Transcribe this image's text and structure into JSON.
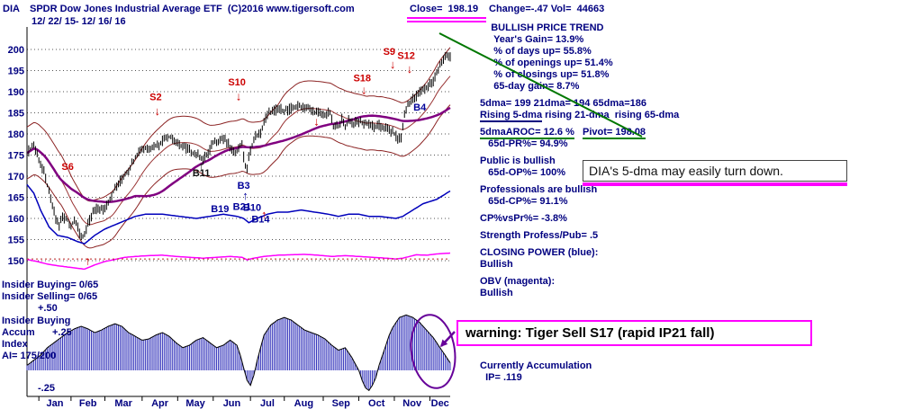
{
  "header": {
    "symbol": "DIA",
    "title": "SPDR Dow Jones Industrial Average ETF  (C)2016 www.tigersoft.com",
    "close": "Close=  198.19",
    "change_vol": "Change=-.47 Vol=  44663",
    "date_range": "12/ 22/ 15- 12/ 16/ 16"
  },
  "left_panel": {
    "insider_buying": "Insider Buying= 0/65",
    "insider_selling": "Insider Selling= 0/65",
    "scale_top": "+.50",
    "panel_title": "Insider Buying",
    "accum_label": "Accum",
    "scale_mid": "+.25",
    "index_label": "Index",
    "ai_value": "AI= 175/200",
    "scale_bottom": "-.25"
  },
  "annotations": {
    "note": "DIA's 5-dma may easily turn down.",
    "warning": "warning: Tiger Sell S17 (rapid IP21 fall)"
  },
  "right_panel": {
    "blocks": [
      {
        "lines": [
          [
            {
              "t": "    BULLISH PRICE TREND"
            }
          ],
          [
            {
              "t": "     Year's Gain= 13.9%"
            }
          ],
          [
            {
              "t": "     % of days up= 55.8%"
            }
          ],
          [
            {
              "t": "     % of openings up= 51.4%"
            }
          ],
          [
            {
              "t": "     % of closings up= 51.8%"
            }
          ],
          [
            {
              "t": "     65-day gain= 8.7%"
            }
          ]
        ]
      },
      {
        "lines": [
          [
            {
              "t": "5dma= 199 21dma= 194 65dma=186"
            }
          ],
          [
            {
              "t": "Rising 5-dma",
              "u": "navy"
            },
            {
              "t": " rising 21-dma  rising 65-dma"
            }
          ]
        ]
      },
      {
        "lines": [
          [
            {
              "t": "5dmaAROC= 12.6 %",
              "u": "green"
            },
            {
              "t": "   "
            },
            {
              "t": "Pivot= 198.08",
              "u": "green",
              "b": true
            }
          ],
          [
            {
              "t": "   65d-PR%= 94.9%"
            }
          ]
        ]
      },
      {
        "lines": [
          [
            {
              "t": "Public is bullish"
            }
          ],
          [
            {
              "t": "   65d-OP%= 100%"
            }
          ]
        ]
      },
      {
        "lines": [
          [
            {
              "t": "Professionals are bullish"
            }
          ],
          [
            {
              "t": "   65d-CP%= 91.1%"
            }
          ]
        ]
      },
      {
        "lines": [
          [
            {
              "t": "CP%vsPr%= -3.8%"
            }
          ]
        ]
      },
      {
        "lines": [
          [
            {
              "t": "Strength Profess/Pub= .5"
            }
          ]
        ]
      },
      {
        "lines": [
          [
            {
              "t": "CLOSING POWER (blue):"
            }
          ],
          [
            {
              "t": "Bullish"
            }
          ]
        ]
      },
      {
        "lines": [
          [
            {
              "t": "OBV (magenta):"
            }
          ],
          [
            {
              "t": "Bullish"
            }
          ]
        ]
      },
      {
        "gap": 68,
        "lines": [
          [
            {
              "t": "Currently Accumulation"
            }
          ],
          [
            {
              "t": "  IP= .119"
            }
          ]
        ]
      }
    ]
  },
  "chart_data": {
    "type": "candlestick",
    "title": "DIA SPDR Dow Jones Industrial Average ETF 12/22/15 - 12/16/16",
    "x_axis": {
      "months": [
        "Jan",
        "Feb",
        "Mar",
        "Apr",
        "May",
        "Jun",
        "Jul",
        "Aug",
        "Sep",
        "Oct",
        "Nov",
        "Dec"
      ],
      "month_boundaries": [
        7,
        26,
        46,
        68,
        89,
        110,
        132,
        152,
        175,
        196,
        217,
        238
      ],
      "total_days": 250
    },
    "y_axis": {
      "ticks": [
        200,
        195,
        190,
        185,
        180,
        175,
        170,
        165,
        160,
        155,
        150
      ],
      "range": [
        148,
        202
      ]
    },
    "close_keyframes": [
      [
        0,
        175.5
      ],
      [
        4,
        177.5
      ],
      [
        7,
        174
      ],
      [
        10,
        171
      ],
      [
        14,
        164.5
      ],
      [
        17,
        160
      ],
      [
        19,
        158.5
      ],
      [
        21,
        160.5
      ],
      [
        24,
        159.5
      ],
      [
        26,
        158
      ],
      [
        28,
        160
      ],
      [
        31,
        156.5
      ],
      [
        33,
        155.5
      ],
      [
        36,
        158.5
      ],
      [
        39,
        161.5
      ],
      [
        42,
        162.5
      ],
      [
        45,
        162
      ],
      [
        48,
        164
      ],
      [
        52,
        167
      ],
      [
        56,
        169.5
      ],
      [
        60,
        171.5
      ],
      [
        64,
        174.5
      ],
      [
        67,
        176.5
      ],
      [
        70,
        176.5
      ],
      [
        74,
        177
      ],
      [
        78,
        177.5
      ],
      [
        82,
        179.5
      ],
      [
        86,
        179
      ],
      [
        89,
        177.5
      ],
      [
        92,
        177
      ],
      [
        95,
        176.5
      ],
      [
        98,
        175.5
      ],
      [
        101,
        175
      ],
      [
        104,
        174
      ],
      [
        107,
        175.5
      ],
      [
        110,
        178
      ],
      [
        113,
        178.5
      ],
      [
        116,
        179
      ],
      [
        119,
        177.5
      ],
      [
        122,
        175.5
      ],
      [
        125,
        176.5
      ],
      [
        127,
        178
      ],
      [
        128,
        174.5
      ],
      [
        129,
        172.5
      ],
      [
        130,
        172
      ],
      [
        131,
        174.5
      ],
      [
        133,
        177.5
      ],
      [
        135,
        179.5
      ],
      [
        138,
        180
      ],
      [
        140,
        183
      ],
      [
        143,
        185
      ],
      [
        146,
        185.5
      ],
      [
        149,
        186
      ],
      [
        152,
        185.5
      ],
      [
        156,
        186
      ],
      [
        160,
        186.5
      ],
      [
        164,
        186.5
      ],
      [
        168,
        185.5
      ],
      [
        172,
        185
      ],
      [
        175,
        184.5
      ],
      [
        179,
        185
      ],
      [
        181,
        181.5
      ],
      [
        184,
        182
      ],
      [
        186,
        183.5
      ],
      [
        188,
        181.5
      ],
      [
        190,
        183.5
      ],
      [
        193,
        182.5
      ],
      [
        196,
        183
      ],
      [
        199,
        182.5
      ],
      [
        202,
        182.5
      ],
      [
        205,
        181.5
      ],
      [
        208,
        182
      ],
      [
        211,
        181.5
      ],
      [
        214,
        181
      ],
      [
        217,
        180
      ],
      [
        219,
        179
      ],
      [
        221,
        179.3
      ],
      [
        222,
        182
      ],
      [
        223,
        184.5
      ],
      [
        225,
        187
      ],
      [
        227,
        188
      ],
      [
        230,
        189
      ],
      [
        233,
        190.5
      ],
      [
        236,
        191
      ],
      [
        238,
        192
      ],
      [
        240,
        192.5
      ],
      [
        242,
        194.5
      ],
      [
        244,
        196.5
      ],
      [
        246,
        197.5
      ],
      [
        248,
        198.5
      ],
      [
        250,
        198.2
      ]
    ],
    "closing_power_keyframes": [
      [
        0,
        168
      ],
      [
        4,
        166
      ],
      [
        8,
        162
      ],
      [
        13,
        158
      ],
      [
        18,
        156
      ],
      [
        24,
        155.5
      ],
      [
        30,
        154.5
      ],
      [
        34,
        154
      ],
      [
        40,
        156
      ],
      [
        46,
        157.5
      ],
      [
        52,
        158.5
      ],
      [
        58,
        159.5
      ],
      [
        64,
        160.5
      ],
      [
        70,
        161
      ],
      [
        80,
        161
      ],
      [
        90,
        160.5
      ],
      [
        100,
        160
      ],
      [
        108,
        160.5
      ],
      [
        116,
        161
      ],
      [
        124,
        160.5
      ],
      [
        128,
        160
      ],
      [
        131,
        159
      ],
      [
        136,
        160
      ],
      [
        142,
        161
      ],
      [
        148,
        161.5
      ],
      [
        154,
        161.5
      ],
      [
        162,
        162
      ],
      [
        170,
        161.5
      ],
      [
        178,
        161
      ],
      [
        184,
        160.5
      ],
      [
        190,
        161
      ],
      [
        196,
        161
      ],
      [
        202,
        160.5
      ],
      [
        208,
        160.5
      ],
      [
        214,
        160.2
      ],
      [
        218,
        160
      ],
      [
        222,
        160.5
      ],
      [
        226,
        161.5
      ],
      [
        230,
        162.5
      ],
      [
        234,
        163.5
      ],
      [
        238,
        164
      ],
      [
        242,
        164.5
      ],
      [
        246,
        165.5
      ],
      [
        250,
        166.5
      ]
    ],
    "obv_keyframes": [
      [
        0,
        150.3
      ],
      [
        6,
        149.8
      ],
      [
        12,
        149.2
      ],
      [
        18,
        148.8
      ],
      [
        24,
        148.5
      ],
      [
        30,
        148.2
      ],
      [
        34,
        148
      ],
      [
        40,
        149
      ],
      [
        46,
        149.8
      ],
      [
        52,
        150.3
      ],
      [
        58,
        150.8
      ],
      [
        64,
        151
      ],
      [
        72,
        151.2
      ],
      [
        80,
        151.3
      ],
      [
        88,
        151
      ],
      [
        96,
        150.8
      ],
      [
        104,
        150.6
      ],
      [
        112,
        150.8
      ],
      [
        120,
        151
      ],
      [
        127,
        150.8
      ],
      [
        130,
        150.2
      ],
      [
        134,
        150.6
      ],
      [
        140,
        151
      ],
      [
        148,
        151.3
      ],
      [
        156,
        151.4
      ],
      [
        164,
        151.5
      ],
      [
        172,
        151.3
      ],
      [
        180,
        151
      ],
      [
        188,
        151.2
      ],
      [
        196,
        151
      ],
      [
        204,
        150.8
      ],
      [
        212,
        150.6
      ],
      [
        218,
        150.4
      ],
      [
        222,
        150.6
      ],
      [
        226,
        151
      ],
      [
        230,
        151.4
      ],
      [
        236,
        151.3
      ],
      [
        242,
        151.6
      ],
      [
        250,
        151.8
      ]
    ],
    "obv_dotted_level": 150.4,
    "accum_keyframes": [
      [
        0,
        0.04
      ],
      [
        4,
        0.08
      ],
      [
        8,
        0.12
      ],
      [
        12,
        0.18
      ],
      [
        16,
        0.22
      ],
      [
        20,
        0.26
      ],
      [
        24,
        0.3
      ],
      [
        28,
        0.33
      ],
      [
        32,
        0.35
      ],
      [
        36,
        0.33
      ],
      [
        40,
        0.3
      ],
      [
        44,
        0.32
      ],
      [
        48,
        0.35
      ],
      [
        52,
        0.37
      ],
      [
        56,
        0.35
      ],
      [
        60,
        0.3
      ],
      [
        64,
        0.27
      ],
      [
        68,
        0.24
      ],
      [
        72,
        0.25
      ],
      [
        76,
        0.28
      ],
      [
        80,
        0.3
      ],
      [
        84,
        0.27
      ],
      [
        88,
        0.22
      ],
      [
        92,
        0.18
      ],
      [
        96,
        0.2
      ],
      [
        100,
        0.24
      ],
      [
        104,
        0.26
      ],
      [
        108,
        0.22
      ],
      [
        112,
        0.18
      ],
      [
        116,
        0.2
      ],
      [
        120,
        0.24
      ],
      [
        124,
        0.2
      ],
      [
        126,
        0.12
      ],
      [
        128,
        0.02
      ],
      [
        130,
        -0.08
      ],
      [
        132,
        -0.12
      ],
      [
        134,
        -0.04
      ],
      [
        136,
        0.08
      ],
      [
        138,
        0.18
      ],
      [
        140,
        0.28
      ],
      [
        144,
        0.36
      ],
      [
        148,
        0.4
      ],
      [
        152,
        0.42
      ],
      [
        156,
        0.4
      ],
      [
        160,
        0.36
      ],
      [
        164,
        0.32
      ],
      [
        168,
        0.3
      ],
      [
        172,
        0.28
      ],
      [
        176,
        0.25
      ],
      [
        180,
        0.2
      ],
      [
        184,
        0.16
      ],
      [
        188,
        0.18
      ],
      [
        192,
        0.1
      ],
      [
        196,
        0
      ],
      [
        198,
        -0.08
      ],
      [
        200,
        -0.14
      ],
      [
        202,
        -0.16
      ],
      [
        204,
        -0.12
      ],
      [
        206,
        -0.06
      ],
      [
        208,
        0.04
      ],
      [
        210,
        0.12
      ],
      [
        212,
        0.2
      ],
      [
        214,
        0.28
      ],
      [
        216,
        0.34
      ],
      [
        218,
        0.38
      ],
      [
        220,
        0.42
      ],
      [
        224,
        0.44
      ],
      [
        228,
        0.42
      ],
      [
        232,
        0.38
      ],
      [
        236,
        0.32
      ],
      [
        240,
        0.26
      ],
      [
        243,
        0.2
      ],
      [
        246,
        0.14
      ],
      [
        248,
        0.1
      ],
      [
        250,
        0.06
      ]
    ],
    "bands": {
      "sma_window": 21,
      "pct": 0.035
    },
    "ma65_window": 65,
    "signals": [
      {
        "label": "S6",
        "day": 24,
        "price": 171.5,
        "color": "red"
      },
      {
        "label": "S2",
        "day": 76,
        "price": 188,
        "color": "red"
      },
      {
        "label": "S10",
        "day": 124,
        "price": 191.5,
        "color": "red"
      },
      {
        "label": "S18",
        "day": 198,
        "price": 192.5,
        "color": "red"
      },
      {
        "label": "S9",
        "day": 214,
        "price": 198.7,
        "color": "red"
      },
      {
        "label": "S12",
        "day": 224,
        "price": 197.8,
        "color": "red"
      },
      {
        "label": "B11",
        "day": 103,
        "price": 170,
        "color": "dark"
      },
      {
        "label": "B3",
        "day": 128,
        "price": 167,
        "color": "navy"
      },
      {
        "label": "B19",
        "day": 114,
        "price": 161.5,
        "color": "navy"
      },
      {
        "label": "B21",
        "day": 127,
        "price": 162,
        "color": "navy"
      },
      {
        "label": "B10",
        "day": 133,
        "price": 161.8,
        "color": "navy"
      },
      {
        "label": "B14",
        "day": 138,
        "price": 159,
        "color": "navy"
      },
      {
        "label": "B4",
        "day": 232,
        "price": 185.5,
        "color": "navy"
      }
    ],
    "arrows": [
      {
        "day": 77,
        "price": 184.5,
        "dir": "down",
        "color": "red"
      },
      {
        "day": 125,
        "price": 188,
        "dir": "down",
        "color": "red"
      },
      {
        "day": 171,
        "price": 182,
        "dir": "down",
        "color": "red"
      },
      {
        "day": 199,
        "price": 189.5,
        "dir": "down",
        "color": "red"
      },
      {
        "day": 216,
        "price": 195.5,
        "dir": "down",
        "color": "red"
      },
      {
        "day": 226,
        "price": 194.5,
        "dir": "down",
        "color": "red"
      },
      {
        "day": 103,
        "price": 171.5,
        "dir": "up",
        "color": "dark"
      },
      {
        "day": 129,
        "price": 164.5,
        "dir": "up",
        "color": "navy"
      },
      {
        "day": 140,
        "price": 160,
        "dir": "up",
        "color": "red"
      },
      {
        "day": 36,
        "price": 149,
        "dir": "up",
        "color": "red"
      }
    ],
    "colors": {
      "candle": "#000000",
      "band": "#8B2222",
      "sma21": "#993333",
      "ma65": "#800080",
      "closing_power": "#0000BB",
      "obv": "#FF00FF",
      "obv_dotted": "#BB2222",
      "histogram": "#3333BB",
      "envelope": "#000000",
      "grid": "#555555",
      "axis_text": "#000080",
      "red": "#CC0000",
      "navy": "#000099",
      "dark": "#111111",
      "green_line": "#007700",
      "purple_annotation": "#660099"
    }
  }
}
